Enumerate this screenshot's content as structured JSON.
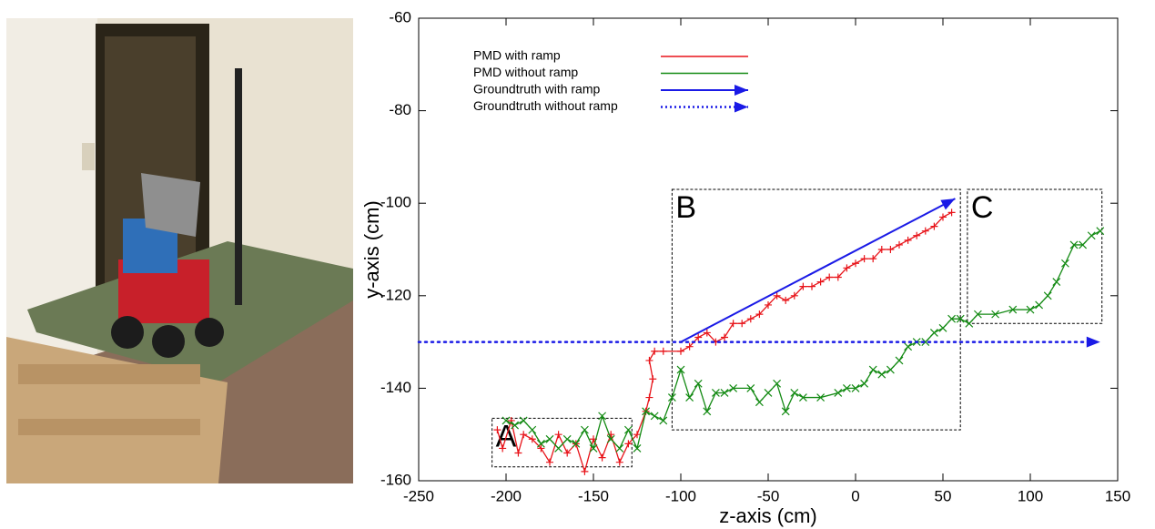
{
  "chart_data": {
    "type": "line",
    "x_label": "z-axis (cm)",
    "y_label": "y-axis (cm)",
    "xlim": [
      -250,
      150
    ],
    "xticks": [
      -250,
      -200,
      -150,
      -100,
      -50,
      0,
      50,
      100,
      150
    ],
    "ylim": [
      -160,
      -60
    ],
    "yticks": [
      -160,
      -140,
      -120,
      -100,
      -80,
      -60
    ],
    "legend": "upper left",
    "series": [
      {
        "name": "PMD with ramp",
        "color": "#e8141a",
        "marker": "+",
        "x": [
          -205,
          -202,
          -197,
          -193,
          -190,
          -185,
          -180,
          -175,
          -170,
          -165,
          -160,
          -155,
          -150,
          -145,
          -140,
          -135,
          -130,
          -125,
          -120,
          -118,
          -116,
          -118,
          -115,
          -110,
          -100,
          -95,
          -90,
          -85,
          -80,
          -75,
          -70,
          -65,
          -60,
          -55,
          -50,
          -45,
          -40,
          -35,
          -30,
          -25,
          -20,
          -15,
          -10,
          -5,
          0,
          5,
          10,
          15,
          20,
          25,
          30,
          35,
          40,
          45,
          50,
          55
        ],
        "values": [
          -149,
          -153,
          -147,
          -154,
          -150,
          -151,
          -153,
          -156,
          -150,
          -154,
          -152,
          -158,
          -151,
          -155,
          -150,
          -156,
          -152,
          -150,
          -145,
          -142,
          -138,
          -134,
          -132,
          -132,
          -132,
          -131,
          -129,
          -128,
          -130,
          -129,
          -126,
          -126,
          -125,
          -124,
          -122,
          -120,
          -121,
          -120,
          -118,
          -118,
          -117,
          -116,
          -116,
          -114,
          -113,
          -112,
          -112,
          -110,
          -110,
          -109,
          -108,
          -107,
          -106,
          -105,
          -103,
          -102
        ]
      },
      {
        "name": "PMD without ramp",
        "color": "#138a13",
        "marker": "x",
        "x": [
          -200,
          -195,
          -190,
          -185,
          -180,
          -175,
          -170,
          -165,
          -160,
          -155,
          -150,
          -145,
          -140,
          -135,
          -130,
          -125,
          -120,
          -115,
          -110,
          -105,
          -100,
          -95,
          -90,
          -85,
          -80,
          -75,
          -70,
          -60,
          -55,
          -50,
          -45,
          -40,
          -35,
          -30,
          -20,
          -10,
          -5,
          0,
          5,
          10,
          15,
          20,
          25,
          30,
          35,
          40,
          45,
          50,
          55,
          60,
          65,
          70,
          80,
          90,
          100,
          105,
          110,
          115,
          120,
          125,
          130,
          135,
          140
        ],
        "values": [
          -147,
          -148,
          -147,
          -149,
          -152,
          -151,
          -153,
          -151,
          -152,
          -149,
          -153,
          -146,
          -151,
          -153,
          -149,
          -153,
          -145,
          -146,
          -147,
          -142,
          -136,
          -142,
          -139,
          -145,
          -141,
          -141,
          -140,
          -140,
          -143,
          -141,
          -139,
          -145,
          -141,
          -142,
          -142,
          -141,
          -140,
          -140,
          -139,
          -136,
          -137,
          -136,
          -134,
          -131,
          -130,
          -130,
          -128,
          -127,
          -125,
          -125,
          -126,
          -124,
          -124,
          -123,
          -123,
          -122,
          -120,
          -117,
          -113,
          -109,
          -109,
          -107,
          -106
        ]
      },
      {
        "name": "Groundtruth with ramp",
        "color": "#1a1ae6",
        "marker": null,
        "arrow": true,
        "x": [
          -100,
          57
        ],
        "values": [
          -130,
          -99
        ]
      },
      {
        "name": "Groundtruth without ramp",
        "color": "#1a1ae6",
        "marker": null,
        "arrow": true,
        "linestyle": "dotted",
        "x": [
          -250,
          140
        ],
        "values": [
          -130,
          -130
        ]
      }
    ],
    "regions": [
      {
        "label": "A",
        "xlim": [
          -208,
          -128
        ],
        "ylim": [
          -157,
          -146.5
        ]
      },
      {
        "label": "B",
        "xlim": [
          -105,
          60
        ],
        "ylim": [
          -149,
          -97
        ]
      },
      {
        "label": "C",
        "xlim": [
          64,
          141
        ],
        "ylim": [
          -126,
          -97
        ]
      }
    ]
  }
}
